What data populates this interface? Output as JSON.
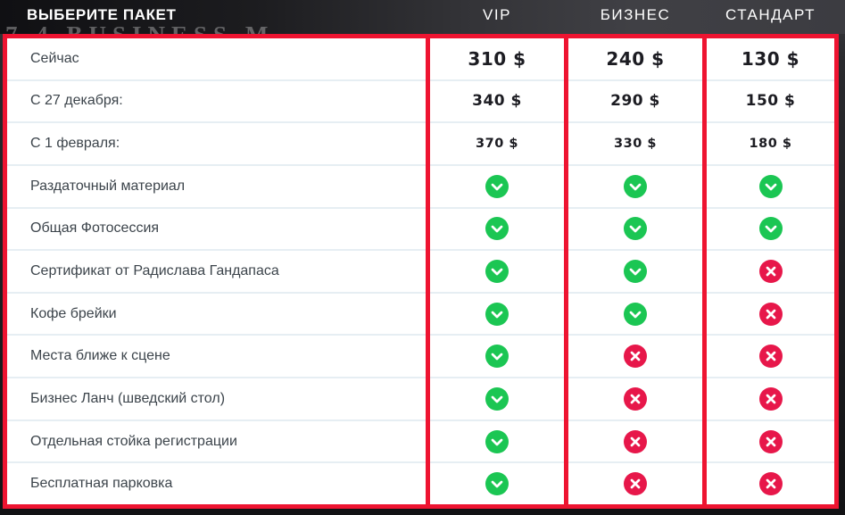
{
  "header": {
    "title": "ВЫБЕРИТЕ ПАКЕТ",
    "background_watermark": "7.4 BUSINESS M",
    "columns": [
      "VIP",
      "БИЗНЕС",
      "СТАНДАРТ"
    ]
  },
  "colors": {
    "accent_red": "#EE1431",
    "check_green": "#1BC653",
    "cross_red": "#E7174A",
    "header_bg": "#3C3C41",
    "row_divider": "#E6EEF3"
  },
  "icons": {
    "included": "check-icon",
    "excluded": "cross-icon"
  },
  "table": {
    "rows": [
      {
        "label": "Сейчас",
        "type": "price",
        "size": "large",
        "values": [
          "310 $",
          "240 $",
          "130 $"
        ]
      },
      {
        "label": "С 27 декабря:",
        "type": "price",
        "size": "medium",
        "values": [
          "340 $",
          "290 $",
          "150 $"
        ]
      },
      {
        "label": "С 1 февраля:",
        "type": "price",
        "size": "small",
        "values": [
          "370 $",
          "330 $",
          "180 $"
        ]
      },
      {
        "label": "Раздаточный материал",
        "type": "feature",
        "values": [
          "yes",
          "yes",
          "yes"
        ]
      },
      {
        "label": "Общая Фотосессия",
        "type": "feature",
        "values": [
          "yes",
          "yes",
          "yes"
        ]
      },
      {
        "label": "Сертификат от Радислава Гандапаса",
        "type": "feature",
        "values": [
          "yes",
          "yes",
          "no"
        ]
      },
      {
        "label": "Кофе брейки",
        "type": "feature",
        "values": [
          "yes",
          "yes",
          "no"
        ]
      },
      {
        "label": "Места ближе к сцене",
        "type": "feature",
        "values": [
          "yes",
          "no",
          "no"
        ]
      },
      {
        "label": "Бизнес Ланч (шведский стол)",
        "type": "feature",
        "values": [
          "yes",
          "no",
          "no"
        ]
      },
      {
        "label": "Отдельная стойка регистрации",
        "type": "feature",
        "values": [
          "yes",
          "no",
          "no"
        ]
      },
      {
        "label": "Бесплатная парковка",
        "type": "feature",
        "values": [
          "yes",
          "no",
          "no"
        ]
      }
    ]
  }
}
